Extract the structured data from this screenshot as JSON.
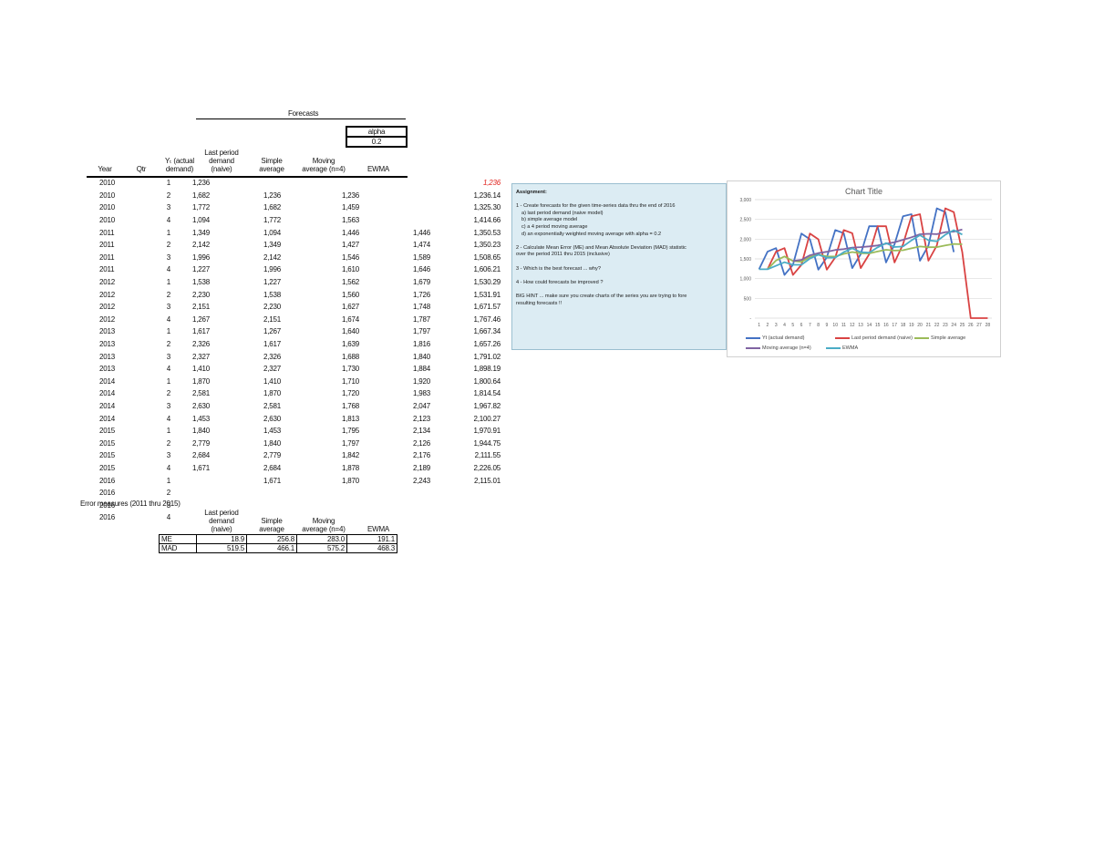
{
  "forecasts_header": "Forecasts",
  "alpha": {
    "label": "alpha",
    "value": "0.2"
  },
  "columns": {
    "year": "Year",
    "qtr": "Qtr",
    "actual": [
      "Yₜ (actual",
      "demand)"
    ],
    "naive": [
      "Last period",
      "demand",
      "(naive)"
    ],
    "simple": [
      "Simple",
      "average"
    ],
    "ma": [
      "Moving",
      "average (n=4)"
    ],
    "ewma": "EWMA"
  },
  "rows": [
    {
      "year": "2010",
      "qtr": "1",
      "actual": "1,236",
      "naive": "",
      "simple": "",
      "ma": "",
      "ewma": "1,236",
      "ewma_highlight": true
    },
    {
      "year": "2010",
      "qtr": "2",
      "actual": "1,682",
      "naive": "1,236",
      "simple": "1,236",
      "ma": "",
      "ewma": "1,236.14"
    },
    {
      "year": "2010",
      "qtr": "3",
      "actual": "1,772",
      "naive": "1,682",
      "simple": "1,459",
      "ma": "",
      "ewma": "1,325.30"
    },
    {
      "year": "2010",
      "qtr": "4",
      "actual": "1,094",
      "naive": "1,772",
      "simple": "1,563",
      "ma": "",
      "ewma": "1,414.66"
    },
    {
      "year": "2011",
      "qtr": "1",
      "actual": "1,349",
      "naive": "1,094",
      "simple": "1,446",
      "ma": "1,446",
      "ewma": "1,350.53"
    },
    {
      "year": "2011",
      "qtr": "2",
      "actual": "2,142",
      "naive": "1,349",
      "simple": "1,427",
      "ma": "1,474",
      "ewma": "1,350.23"
    },
    {
      "year": "2011",
      "qtr": "3",
      "actual": "1,996",
      "naive": "2,142",
      "simple": "1,546",
      "ma": "1,589",
      "ewma": "1,508.65"
    },
    {
      "year": "2011",
      "qtr": "4",
      "actual": "1,227",
      "naive": "1,996",
      "simple": "1,610",
      "ma": "1,646",
      "ewma": "1,606.21"
    },
    {
      "year": "2012",
      "qtr": "1",
      "actual": "1,538",
      "naive": "1,227",
      "simple": "1,562",
      "ma": "1,679",
      "ewma": "1,530.29"
    },
    {
      "year": "2012",
      "qtr": "2",
      "actual": "2,230",
      "naive": "1,538",
      "simple": "1,560",
      "ma": "1,726",
      "ewma": "1,531.91"
    },
    {
      "year": "2012",
      "qtr": "3",
      "actual": "2,151",
      "naive": "2,230",
      "simple": "1,627",
      "ma": "1,748",
      "ewma": "1,671.57"
    },
    {
      "year": "2012",
      "qtr": "4",
      "actual": "1,267",
      "naive": "2,151",
      "simple": "1,674",
      "ma": "1,787",
      "ewma": "1,767.46"
    },
    {
      "year": "2013",
      "qtr": "1",
      "actual": "1,617",
      "naive": "1,267",
      "simple": "1,640",
      "ma": "1,797",
      "ewma": "1,667.34"
    },
    {
      "year": "2013",
      "qtr": "2",
      "actual": "2,326",
      "naive": "1,617",
      "simple": "1,639",
      "ma": "1,816",
      "ewma": "1,657.26"
    },
    {
      "year": "2013",
      "qtr": "3",
      "actual": "2,327",
      "naive": "2,326",
      "simple": "1,688",
      "ma": "1,840",
      "ewma": "1,791.02"
    },
    {
      "year": "2013",
      "qtr": "4",
      "actual": "1,410",
      "naive": "2,327",
      "simple": "1,730",
      "ma": "1,884",
      "ewma": "1,898.19"
    },
    {
      "year": "2014",
      "qtr": "1",
      "actual": "1,870",
      "naive": "1,410",
      "simple": "1,710",
      "ma": "1,920",
      "ewma": "1,800.64"
    },
    {
      "year": "2014",
      "qtr": "2",
      "actual": "2,581",
      "naive": "1,870",
      "simple": "1,720",
      "ma": "1,983",
      "ewma": "1,814.54"
    },
    {
      "year": "2014",
      "qtr": "3",
      "actual": "2,630",
      "naive": "2,581",
      "simple": "1,768",
      "ma": "2,047",
      "ewma": "1,967.82"
    },
    {
      "year": "2014",
      "qtr": "4",
      "actual": "1,453",
      "naive": "2,630",
      "simple": "1,813",
      "ma": "2,123",
      "ewma": "2,100.27"
    },
    {
      "year": "2015",
      "qtr": "1",
      "actual": "1,840",
      "naive": "1,453",
      "simple": "1,795",
      "ma": "2,134",
      "ewma": "1,970.91"
    },
    {
      "year": "2015",
      "qtr": "2",
      "actual": "2,779",
      "naive": "1,840",
      "simple": "1,797",
      "ma": "2,126",
      "ewma": "1,944.75"
    },
    {
      "year": "2015",
      "qtr": "3",
      "actual": "2,684",
      "naive": "2,779",
      "simple": "1,842",
      "ma": "2,176",
      "ewma": "2,111.55"
    },
    {
      "year": "2015",
      "qtr": "4",
      "actual": "1,671",
      "naive": "2,684",
      "simple": "1,878",
      "ma": "2,189",
      "ewma": "2,226.05"
    },
    {
      "year": "2016",
      "qtr": "1",
      "actual": "",
      "naive": "1,671",
      "simple": "1,870",
      "ma": "2,243",
      "ewma": "2,115.01"
    },
    {
      "year": "2016",
      "qtr": "2",
      "actual": "",
      "naive": "",
      "simple": "",
      "ma": "",
      "ewma": ""
    },
    {
      "year": "2016",
      "qtr": "3",
      "actual": "",
      "naive": "",
      "simple": "",
      "ma": "",
      "ewma": ""
    },
    {
      "year": "2016",
      "qtr": "4",
      "actual": "",
      "naive": "",
      "simple": "",
      "ma": "",
      "ewma": ""
    }
  ],
  "error_measures": {
    "title": "Error measures (2011 thru 2015)",
    "columns": {
      "naive": [
        "Last period",
        "demand",
        "(naive)"
      ],
      "simple": [
        "Simple",
        "average"
      ],
      "ma": [
        "Moving",
        "average (n=4)"
      ],
      "ewma": "EWMA"
    },
    "rows": [
      {
        "label": "ME",
        "naive": "18.9",
        "simple": "256.8",
        "ma": "283.0",
        "ewma": "191.1"
      },
      {
        "label": "MAD",
        "naive": "519.5",
        "simple": "466.1",
        "ma": "575.2",
        "ewma": "468.3"
      }
    ]
  },
  "assignment": {
    "title": "Assignment:",
    "lines": [
      "1 - Create forecasts for the given time-series data thru the end of 2016",
      "a) last period demand (naive model)",
      "b) simple average model",
      "c) a 4 period moving average",
      "d) an exponentially weighted moving average with alpha = 0.2",
      "2 - Calculate Mean Error (ME) and Mean Absolute Deviation (MAD) statistic",
      "over the period 2011 thru 2015 (inclusive)",
      "3 - Which is the best forecast ... why?",
      "4 - How could forecasts be improved ?",
      "BIG HINT ... make sure you create charts of the series you are trying to fore",
      "resulting forecasts !!"
    ]
  },
  "chart_data": {
    "type": "line",
    "title": "Chart Title",
    "xlabel": "",
    "ylabel": "",
    "ylim": [
      0,
      3000
    ],
    "yticks": [
      "-",
      "500",
      "1,000",
      "1,500",
      "2,000",
      "2,500",
      "3,000"
    ],
    "x": [
      1,
      2,
      3,
      4,
      5,
      6,
      7,
      8,
      9,
      10,
      11,
      12,
      13,
      14,
      15,
      16,
      17,
      18,
      19,
      20,
      21,
      22,
      23,
      24,
      25,
      26,
      27,
      28
    ],
    "grid": true,
    "legend_position": "bottom",
    "series": [
      {
        "name": "Yt (actual demand)",
        "color": "#4472c4",
        "values": [
          1236,
          1682,
          1772,
          1094,
          1349,
          2142,
          1996,
          1227,
          1538,
          2230,
          2151,
          1267,
          1617,
          2326,
          2327,
          1410,
          1870,
          2581,
          2630,
          1453,
          1840,
          2779,
          2684,
          1671
        ]
      },
      {
        "name": "Last period demand (naive)",
        "color": "#d94343",
        "values": [
          null,
          1236,
          1682,
          1772,
          1094,
          1349,
          2142,
          1996,
          1227,
          1538,
          2230,
          2151,
          1267,
          1617,
          2326,
          2327,
          1410,
          1870,
          2581,
          2630,
          1453,
          1840,
          2779,
          2684,
          1671,
          0,
          0,
          0
        ]
      },
      {
        "name": "Simple average",
        "color": "#9bbb59",
        "values": [
          null,
          1236,
          1459,
          1563,
          1446,
          1427,
          1546,
          1610,
          1562,
          1560,
          1627,
          1674,
          1640,
          1639,
          1688,
          1730,
          1710,
          1720,
          1768,
          1813,
          1795,
          1797,
          1842,
          1878,
          1870
        ]
      },
      {
        "name": "Moving average (n=4)",
        "color": "#8064a2",
        "values": [
          null,
          null,
          null,
          null,
          1446,
          1474,
          1589,
          1646,
          1679,
          1726,
          1748,
          1787,
          1797,
          1816,
          1840,
          1884,
          1920,
          1983,
          2047,
          2123,
          2134,
          2126,
          2176,
          2189,
          2243
        ]
      },
      {
        "name": "EWMA",
        "color": "#4bacc6",
        "values": [
          1236,
          1236.14,
          1325.3,
          1414.66,
          1350.53,
          1350.23,
          1508.65,
          1606.21,
          1530.29,
          1531.91,
          1671.57,
          1767.46,
          1667.34,
          1657.26,
          1791.02,
          1898.19,
          1800.64,
          1814.54,
          1967.82,
          2100.27,
          1970.91,
          1944.75,
          2111.55,
          2226.05,
          2115.01
        ]
      }
    ]
  }
}
